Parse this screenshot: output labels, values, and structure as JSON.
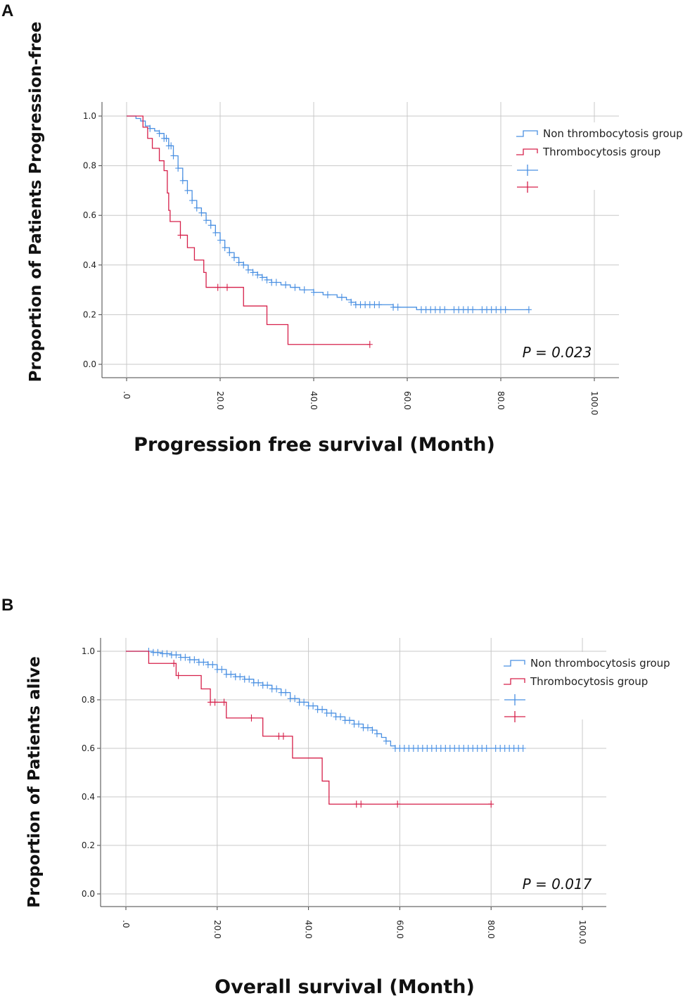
{
  "colors": {
    "non": "#4a90e2",
    "thr": "#d6204a",
    "grid": "#c8c8c8",
    "axis": "#444444"
  },
  "chart_data": [
    {
      "panel": "A",
      "type": "line",
      "subtype": "kaplan-meier",
      "xlabel": "Progression free survival (Month)",
      "ylabel": "Proportion of Patients Progression-free",
      "xlim": [
        0,
        100
      ],
      "ylim": [
        0,
        1.0
      ],
      "x_ticks": [
        0,
        20,
        40,
        60,
        80,
        100
      ],
      "x_tick_labels": [
        ".0",
        "20.0",
        "40.0",
        "60.0",
        "80.0",
        "100.0"
      ],
      "y_ticks": [
        0,
        0.2,
        0.4,
        0.6,
        0.8,
        1.0
      ],
      "y_tick_labels": [
        "0.0",
        "0.2",
        "0.4",
        "0.6",
        "0.8",
        "1.0"
      ],
      "legend": [
        "Non thrombocytosis group",
        "Thrombocytosis group"
      ],
      "annotation": "P  =  0.023",
      "series": [
        {
          "name": "Non thrombocytosis group",
          "steps": [
            [
              0,
              1.0
            ],
            [
              2,
              0.99
            ],
            [
              3,
              0.98
            ],
            [
              4,
              0.96
            ],
            [
              5,
              0.95
            ],
            [
              6,
              0.94
            ],
            [
              7,
              0.93
            ],
            [
              8,
              0.91
            ],
            [
              9,
              0.88
            ],
            [
              10,
              0.84
            ],
            [
              11,
              0.79
            ],
            [
              12,
              0.74
            ],
            [
              13,
              0.7
            ],
            [
              14,
              0.66
            ],
            [
              15,
              0.63
            ],
            [
              16,
              0.61
            ],
            [
              17,
              0.58
            ],
            [
              18,
              0.56
            ],
            [
              19,
              0.53
            ],
            [
              20,
              0.5
            ],
            [
              21,
              0.47
            ],
            [
              22,
              0.45
            ],
            [
              23,
              0.43
            ],
            [
              24,
              0.41
            ],
            [
              25,
              0.4
            ],
            [
              26,
              0.38
            ],
            [
              27,
              0.37
            ],
            [
              28,
              0.36
            ],
            [
              29,
              0.35
            ],
            [
              30,
              0.34
            ],
            [
              31,
              0.33
            ],
            [
              33,
              0.32
            ],
            [
              35,
              0.31
            ],
            [
              37,
              0.3
            ],
            [
              40,
              0.29
            ],
            [
              42,
              0.28
            ],
            [
              45,
              0.27
            ],
            [
              47,
              0.26
            ],
            [
              48,
              0.25
            ],
            [
              49,
              0.24
            ],
            [
              55,
              0.24
            ],
            [
              57,
              0.23
            ],
            [
              62,
              0.22
            ],
            [
              86,
              0.22
            ]
          ],
          "censored": [
            5,
            7,
            8,
            8.5,
            9,
            9.5,
            10,
            11,
            12,
            13,
            14,
            15,
            16,
            17,
            18,
            19,
            20,
            21,
            22,
            23,
            24,
            25,
            26,
            27,
            28,
            29,
            30,
            31,
            32,
            34,
            36,
            38,
            40,
            43,
            46,
            48,
            49,
            50,
            51,
            52,
            53,
            54,
            57,
            58,
            63,
            64,
            65,
            66,
            67,
            68,
            70,
            71,
            72,
            73,
            74,
            76,
            77,
            78,
            79,
            80,
            81,
            86
          ]
        },
        {
          "name": "Thrombocytosis group",
          "steps": [
            [
              0,
              1.0
            ],
            [
              3.5,
              0.955
            ],
            [
              4.5,
              0.91
            ],
            [
              5.5,
              0.87
            ],
            [
              7,
              0.82
            ],
            [
              8,
              0.78
            ],
            [
              8.7,
              0.69
            ],
            [
              9,
              0.62
            ],
            [
              9.3,
              0.575
            ],
            [
              11.5,
              0.52
            ],
            [
              13,
              0.47
            ],
            [
              14.5,
              0.42
            ],
            [
              16.5,
              0.37
            ],
            [
              17,
              0.31
            ],
            [
              25,
              0.235
            ],
            [
              30,
              0.16
            ],
            [
              34.5,
              0.08
            ],
            [
              52,
              0.08
            ]
          ],
          "censored": [
            11.5,
            19.5,
            21.5,
            52
          ]
        }
      ]
    },
    {
      "panel": "B",
      "type": "line",
      "subtype": "kaplan-meier",
      "xlabel": "Overall survival (Month)",
      "ylabel": "Proportion of Patients alive",
      "xlim": [
        0,
        100
      ],
      "ylim": [
        0,
        1.0
      ],
      "x_ticks": [
        0,
        20,
        40,
        60,
        80,
        100
      ],
      "x_tick_labels": [
        ".0",
        "20.0",
        "40.0",
        "60.0",
        "80.0",
        "100.0"
      ],
      "y_ticks": [
        0,
        0.2,
        0.4,
        0.6,
        0.8,
        1.0
      ],
      "y_tick_labels": [
        "0.0",
        "0.2",
        "0.4",
        "0.6",
        "0.8",
        "1.0"
      ],
      "legend": [
        "Non thrombocytosis group",
        "Thrombocytosis group"
      ],
      "annotation": "P  =  0.017",
      "series": [
        {
          "name": "Non thrombocytosis group",
          "steps": [
            [
              0,
              1.0
            ],
            [
              6,
              0.995
            ],
            [
              8,
              0.99
            ],
            [
              10,
              0.985
            ],
            [
              12,
              0.975
            ],
            [
              14,
              0.965
            ],
            [
              16,
              0.955
            ],
            [
              18,
              0.945
            ],
            [
              20,
              0.925
            ],
            [
              22,
              0.905
            ],
            [
              24,
              0.895
            ],
            [
              26,
              0.885
            ],
            [
              28,
              0.87
            ],
            [
              30,
              0.86
            ],
            [
              32,
              0.845
            ],
            [
              34,
              0.83
            ],
            [
              36,
              0.805
            ],
            [
              38,
              0.79
            ],
            [
              40,
              0.775
            ],
            [
              42,
              0.76
            ],
            [
              44,
              0.745
            ],
            [
              46,
              0.73
            ],
            [
              48,
              0.715
            ],
            [
              50,
              0.7
            ],
            [
              52,
              0.685
            ],
            [
              54,
              0.675
            ],
            [
              55,
              0.66
            ],
            [
              56,
              0.645
            ],
            [
              57,
              0.63
            ],
            [
              58,
              0.61
            ],
            [
              59,
              0.6
            ],
            [
              87,
              0.6
            ]
          ],
          "censored": [
            5,
            6,
            7,
            8,
            9,
            10,
            11,
            12,
            13,
            14,
            15,
            16,
            17,
            18,
            19,
            20,
            21,
            22,
            23,
            24,
            25,
            26,
            27,
            28,
            29,
            30,
            31,
            32,
            33,
            34,
            35,
            36,
            37,
            38,
            39,
            40,
            41,
            42,
            43,
            44,
            45,
            46,
            47,
            48,
            49,
            50,
            51,
            52,
            53,
            54,
            55,
            57,
            59,
            60,
            61,
            62,
            63,
            64,
            65,
            66,
            67,
            68,
            69,
            70,
            71,
            72,
            73,
            74,
            75,
            76,
            77,
            78,
            79,
            81,
            82,
            83,
            84,
            85,
            86,
            87
          ]
        },
        {
          "name": "Thrombocytosis group",
          "steps": [
            [
              0,
              1.0
            ],
            [
              5,
              0.95
            ],
            [
              11,
              0.9
            ],
            [
              16.5,
              0.845
            ],
            [
              18.5,
              0.79
            ],
            [
              22,
              0.725
            ],
            [
              30,
              0.65
            ],
            [
              36.5,
              0.56
            ],
            [
              43,
              0.465
            ],
            [
              44.5,
              0.37
            ],
            [
              80,
              0.37
            ]
          ],
          "censored": [
            10.5,
            11.5,
            18.5,
            19.5,
            21.5,
            27.5,
            33.5,
            34.5,
            50.5,
            51.5,
            59.5,
            80
          ]
        }
      ]
    }
  ]
}
